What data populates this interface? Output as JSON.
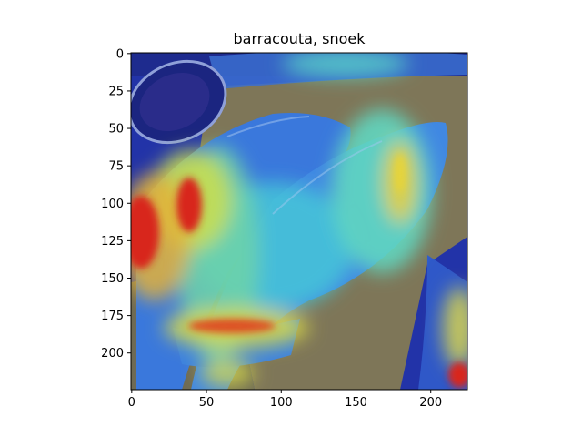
{
  "figure": {
    "title": "barracouta, snoek"
  },
  "image": {
    "description_tag": "gradcam-overlay",
    "x_range": [
      0,
      224
    ],
    "y_range": [
      0,
      224
    ],
    "x_ticks": [
      0,
      50,
      100,
      150,
      200
    ],
    "y_ticks": [
      0,
      25,
      50,
      75,
      100,
      125,
      150,
      175,
      200
    ],
    "colors": {
      "cold": "#1a2c9a",
      "cool": "#3f7fe0",
      "mid": "#5ad6c8",
      "warm": "#e6d43a",
      "hot": "#d8261c",
      "board": "#8a7a55"
    }
  }
}
